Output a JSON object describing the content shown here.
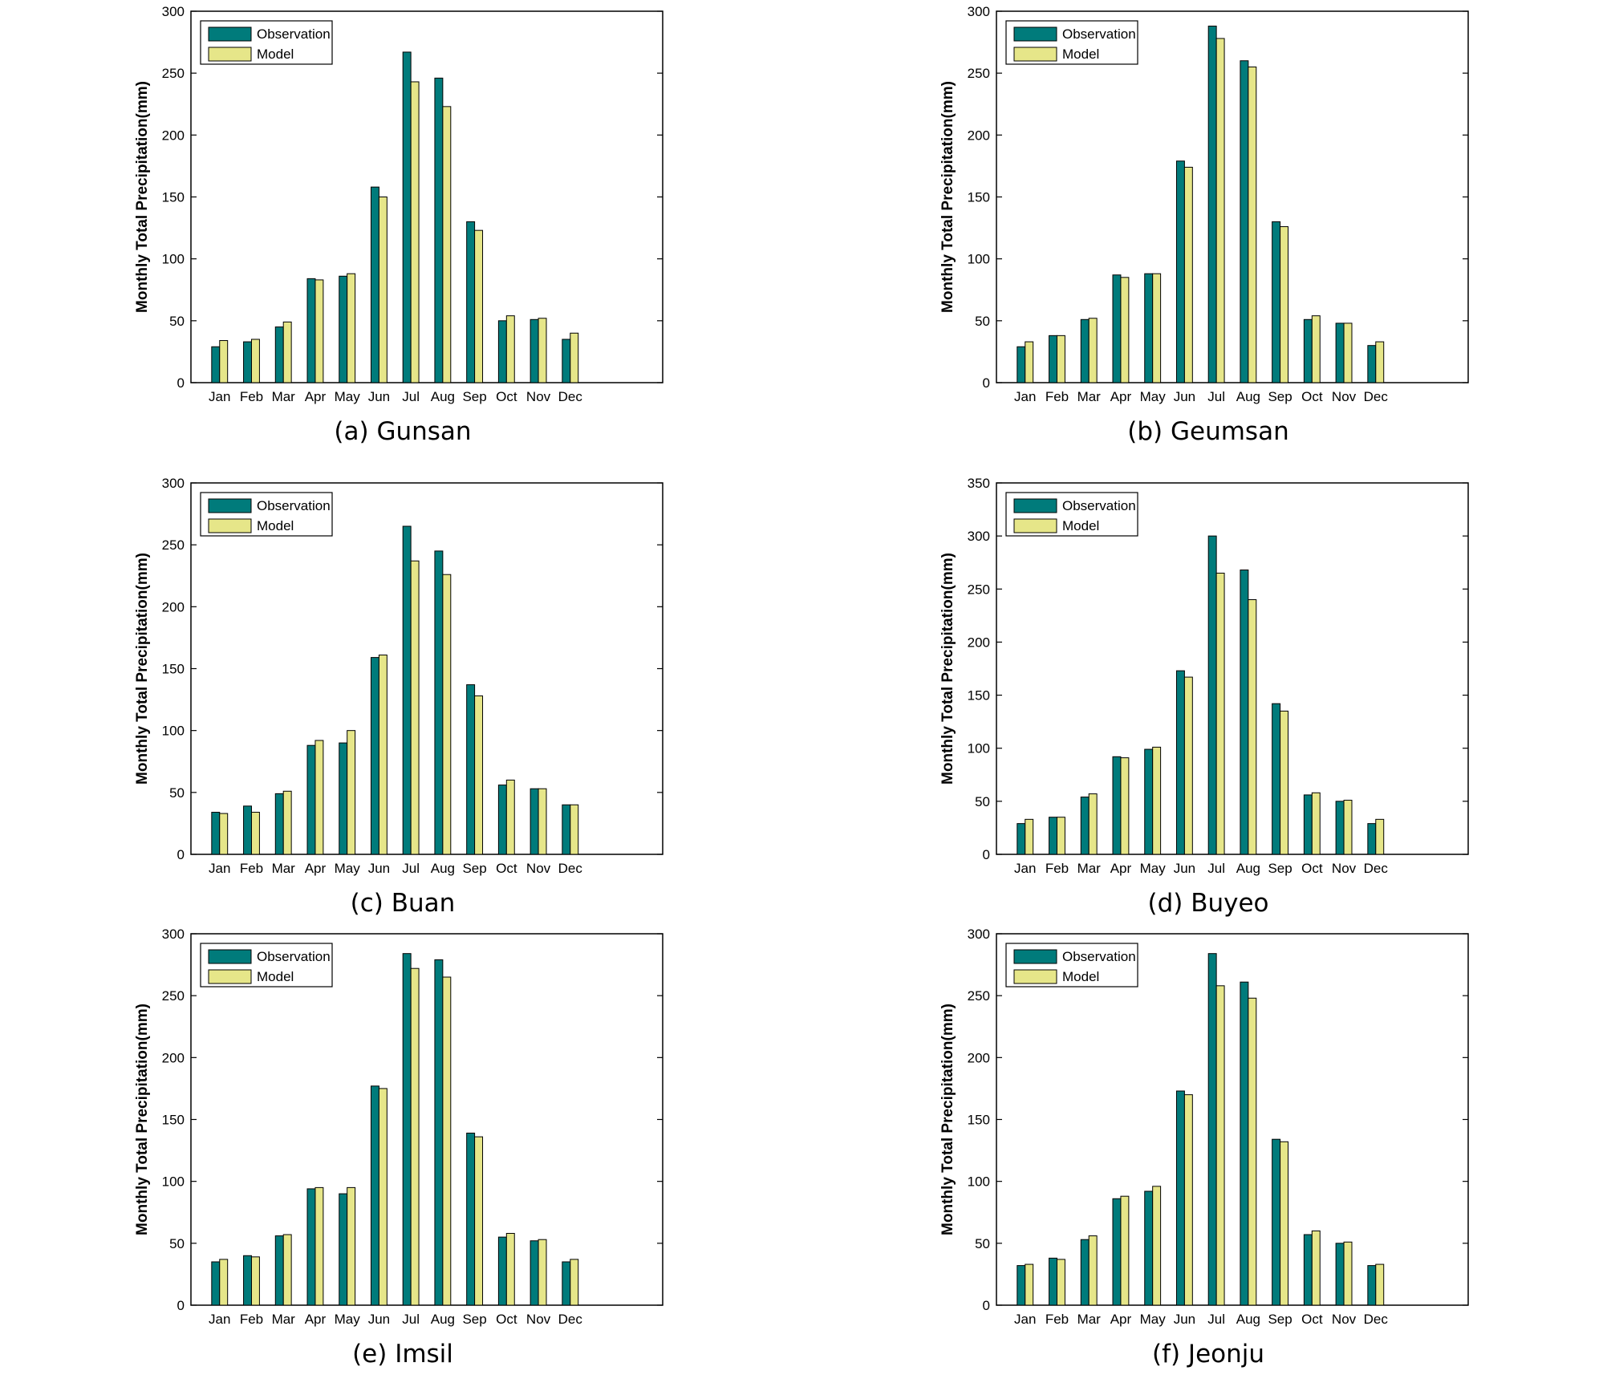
{
  "colors": {
    "observation": "#007b7b",
    "model": "#e6e689",
    "axis": "#000000"
  },
  "panels": [
    {
      "caption": "(a) Gunsan",
      "chart_data": {
        "type": "bar",
        "ylabel": "Monthly Total Precipitation(mm)",
        "ylim": [
          0,
          300
        ],
        "yticks": [
          0,
          50,
          100,
          150,
          200,
          250,
          300
        ],
        "legend": "top-left",
        "categories": [
          "Jan",
          "Feb",
          "Mar",
          "Apr",
          "May",
          "Jun",
          "Jul",
          "Aug",
          "Sep",
          "Oct",
          "Nov",
          "Dec"
        ],
        "series": [
          {
            "name": "Observation",
            "values": [
              29,
              33,
              45,
              84,
              86,
              158,
              267,
              246,
              130,
              50,
              51,
              35
            ]
          },
          {
            "name": "Model",
            "values": [
              34,
              35,
              49,
              83,
              88,
              150,
              243,
              223,
              123,
              54,
              52,
              40
            ]
          }
        ]
      }
    },
    {
      "caption": "(b) Geumsan",
      "chart_data": {
        "type": "bar",
        "ylabel": "Monthly Total Precipitation(mm)",
        "ylim": [
          0,
          300
        ],
        "yticks": [
          0,
          50,
          100,
          150,
          200,
          250,
          300
        ],
        "legend": "top-left",
        "categories": [
          "Jan",
          "Feb",
          "Mar",
          "Apr",
          "May",
          "Jun",
          "Jul",
          "Aug",
          "Sep",
          "Oct",
          "Nov",
          "Dec"
        ],
        "series": [
          {
            "name": "Observation",
            "values": [
              29,
              38,
              51,
              87,
              88,
              179,
              288,
              260,
              130,
              51,
              48,
              30
            ]
          },
          {
            "name": "Model",
            "values": [
              33,
              38,
              52,
              85,
              88,
              174,
              278,
              255,
              126,
              54,
              48,
              33
            ]
          }
        ]
      }
    },
    {
      "caption": "(c) Buan",
      "chart_data": {
        "type": "bar",
        "ylabel": "Monthly Total Precipitation(mm)",
        "ylim": [
          0,
          300
        ],
        "yticks": [
          0,
          50,
          100,
          150,
          200,
          250,
          300
        ],
        "legend": "top-left",
        "categories": [
          "Jan",
          "Feb",
          "Mar",
          "Apr",
          "May",
          "Jun",
          "Jul",
          "Aug",
          "Sep",
          "Oct",
          "Nov",
          "Dec"
        ],
        "series": [
          {
            "name": "Observation",
            "values": [
              34,
              39,
              49,
              88,
              90,
              159,
              265,
              245,
              137,
              56,
              53,
              40
            ]
          },
          {
            "name": "Model",
            "values": [
              33,
              34,
              51,
              92,
              100,
              161,
              237,
              226,
              128,
              60,
              53,
              40
            ]
          }
        ]
      }
    },
    {
      "caption": "(d) Buyeo",
      "chart_data": {
        "type": "bar",
        "ylabel": "Monthly Total Precipitation(mm)",
        "ylim": [
          0,
          350
        ],
        "yticks": [
          0,
          50,
          100,
          150,
          200,
          250,
          300,
          350
        ],
        "legend": "top-left",
        "categories": [
          "Jan",
          "Feb",
          "Mar",
          "Apr",
          "May",
          "Jun",
          "Jul",
          "Aug",
          "Sep",
          "Oct",
          "Nov",
          "Dec"
        ],
        "series": [
          {
            "name": "Observation",
            "values": [
              29,
              35,
              54,
              92,
              99,
              173,
              300,
              268,
              142,
              56,
              50,
              29
            ]
          },
          {
            "name": "Model",
            "values": [
              33,
              35,
              57,
              91,
              101,
              167,
              265,
              240,
              135,
              58,
              51,
              33
            ]
          }
        ]
      }
    },
    {
      "caption": "(e) Imsil",
      "chart_data": {
        "type": "bar",
        "ylabel": "Monthly Total Precipitation(mm)",
        "ylim": [
          0,
          300
        ],
        "yticks": [
          0,
          50,
          100,
          150,
          200,
          250,
          300
        ],
        "legend": "top-left",
        "categories": [
          "Jan",
          "Feb",
          "Mar",
          "Apr",
          "May",
          "Jun",
          "Jul",
          "Aug",
          "Sep",
          "Oct",
          "Nov",
          "Dec"
        ],
        "series": [
          {
            "name": "Observation",
            "values": [
              35,
              40,
              56,
              94,
              90,
              177,
              284,
              279,
              139,
              55,
              52,
              35
            ]
          },
          {
            "name": "Model",
            "values": [
              37,
              39,
              57,
              95,
              95,
              175,
              272,
              265,
              136,
              58,
              53,
              37
            ]
          }
        ]
      }
    },
    {
      "caption": "(f) Jeonju",
      "chart_data": {
        "type": "bar",
        "ylabel": "Monthly Total Precipitation(mm)",
        "ylim": [
          0,
          300
        ],
        "yticks": [
          0,
          50,
          100,
          150,
          200,
          250,
          300
        ],
        "legend": "top-left",
        "categories": [
          "Jan",
          "Feb",
          "Mar",
          "Apr",
          "May",
          "Jun",
          "Jul",
          "Aug",
          "Sep",
          "Oct",
          "Nov",
          "Dec"
        ],
        "series": [
          {
            "name": "Observation",
            "values": [
              32,
              38,
              53,
              86,
              92,
              173,
              284,
              261,
              134,
              57,
              50,
              32
            ]
          },
          {
            "name": "Model",
            "values": [
              33,
              37,
              56,
              88,
              96,
              170,
              258,
              248,
              132,
              60,
              51,
              33
            ]
          }
        ]
      }
    }
  ]
}
